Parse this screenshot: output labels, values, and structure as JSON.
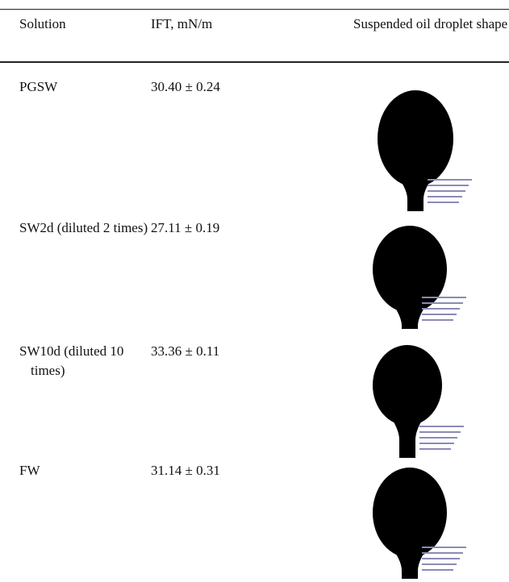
{
  "table": {
    "headers": [
      "Solution",
      "IFT, mN/m",
      "Suspended oil droplet shape"
    ],
    "rows": [
      [
        "PGSW",
        "30.40 ± 0.24"
      ],
      [
        "SW2d (diluted 2 times)",
        "27.11 ± 0.19"
      ],
      [
        "SW10d (diluted 10 times)",
        "33.36 ± 0.11"
      ],
      [
        "FW",
        "31.14 ± 0.31"
      ]
    ]
  }
}
